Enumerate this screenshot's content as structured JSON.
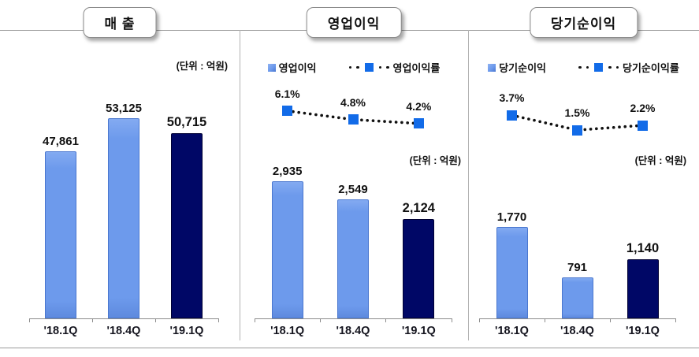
{
  "colors": {
    "bar_light": "#6d9aec",
    "bar_light_edge": "#4a77cf",
    "bar_dark": "#000766",
    "marker_blue": "#126be8",
    "line_dots": "#111111",
    "axis_gray": "#8c8c8c",
    "rule_gray": "#9a9a9a",
    "divider_gray": "#b3b3b3",
    "text": "#111111"
  },
  "chart_data": [
    {
      "type": "bar",
      "title": "매 출",
      "unit": "(단위 : 억원)",
      "categories": [
        "'18.1Q",
        "'18.4Q",
        "'19.1Q"
      ],
      "series": [
        {
          "name": "매출",
          "type": "bar",
          "values": [
            47861,
            53125,
            50715
          ],
          "value_labels": [
            "47,861",
            "53,125",
            "50,715"
          ]
        }
      ],
      "ylim": [
        21300,
        64400
      ],
      "grid": false,
      "legend_shown": false
    },
    {
      "type": "bar+line",
      "title": "영업이익",
      "unit": "(단위 : 억원)",
      "categories": [
        "'18.1Q",
        "'18.4Q",
        "'19.1Q"
      ],
      "series": [
        {
          "name": "영업이익",
          "type": "bar",
          "values": [
            2935,
            2549,
            2124
          ],
          "value_labels": [
            "2,935",
            "2,549",
            "2,124"
          ]
        },
        {
          "name": "영업이익률",
          "type": "line",
          "values": [
            6.1,
            4.8,
            4.2
          ],
          "value_labels": [
            "6.1%",
            "4.8%",
            "4.2%"
          ]
        }
      ],
      "ylim": [
        0,
        5800
      ],
      "grid": false,
      "legend_shown": true,
      "legend_position": "top"
    },
    {
      "type": "bar+line",
      "title": "당기순이익",
      "unit": "(단위 : 억원)",
      "categories": [
        "'18.1Q",
        "'18.4Q",
        "'19.1Q"
      ],
      "series": [
        {
          "name": "당기순이익",
          "type": "bar",
          "values": [
            1770,
            791,
            1140
          ],
          "value_labels": [
            "1,770",
            "791",
            "1,140"
          ]
        },
        {
          "name": "당기순이익률",
          "type": "line",
          "values": [
            3.7,
            1.5,
            2.2
          ],
          "value_labels": [
            "3.7%",
            "1.5%",
            "2.2%"
          ]
        }
      ],
      "ylim": [
        0,
        5230
      ],
      "grid": false,
      "legend_shown": true,
      "legend_position": "top"
    }
  ]
}
